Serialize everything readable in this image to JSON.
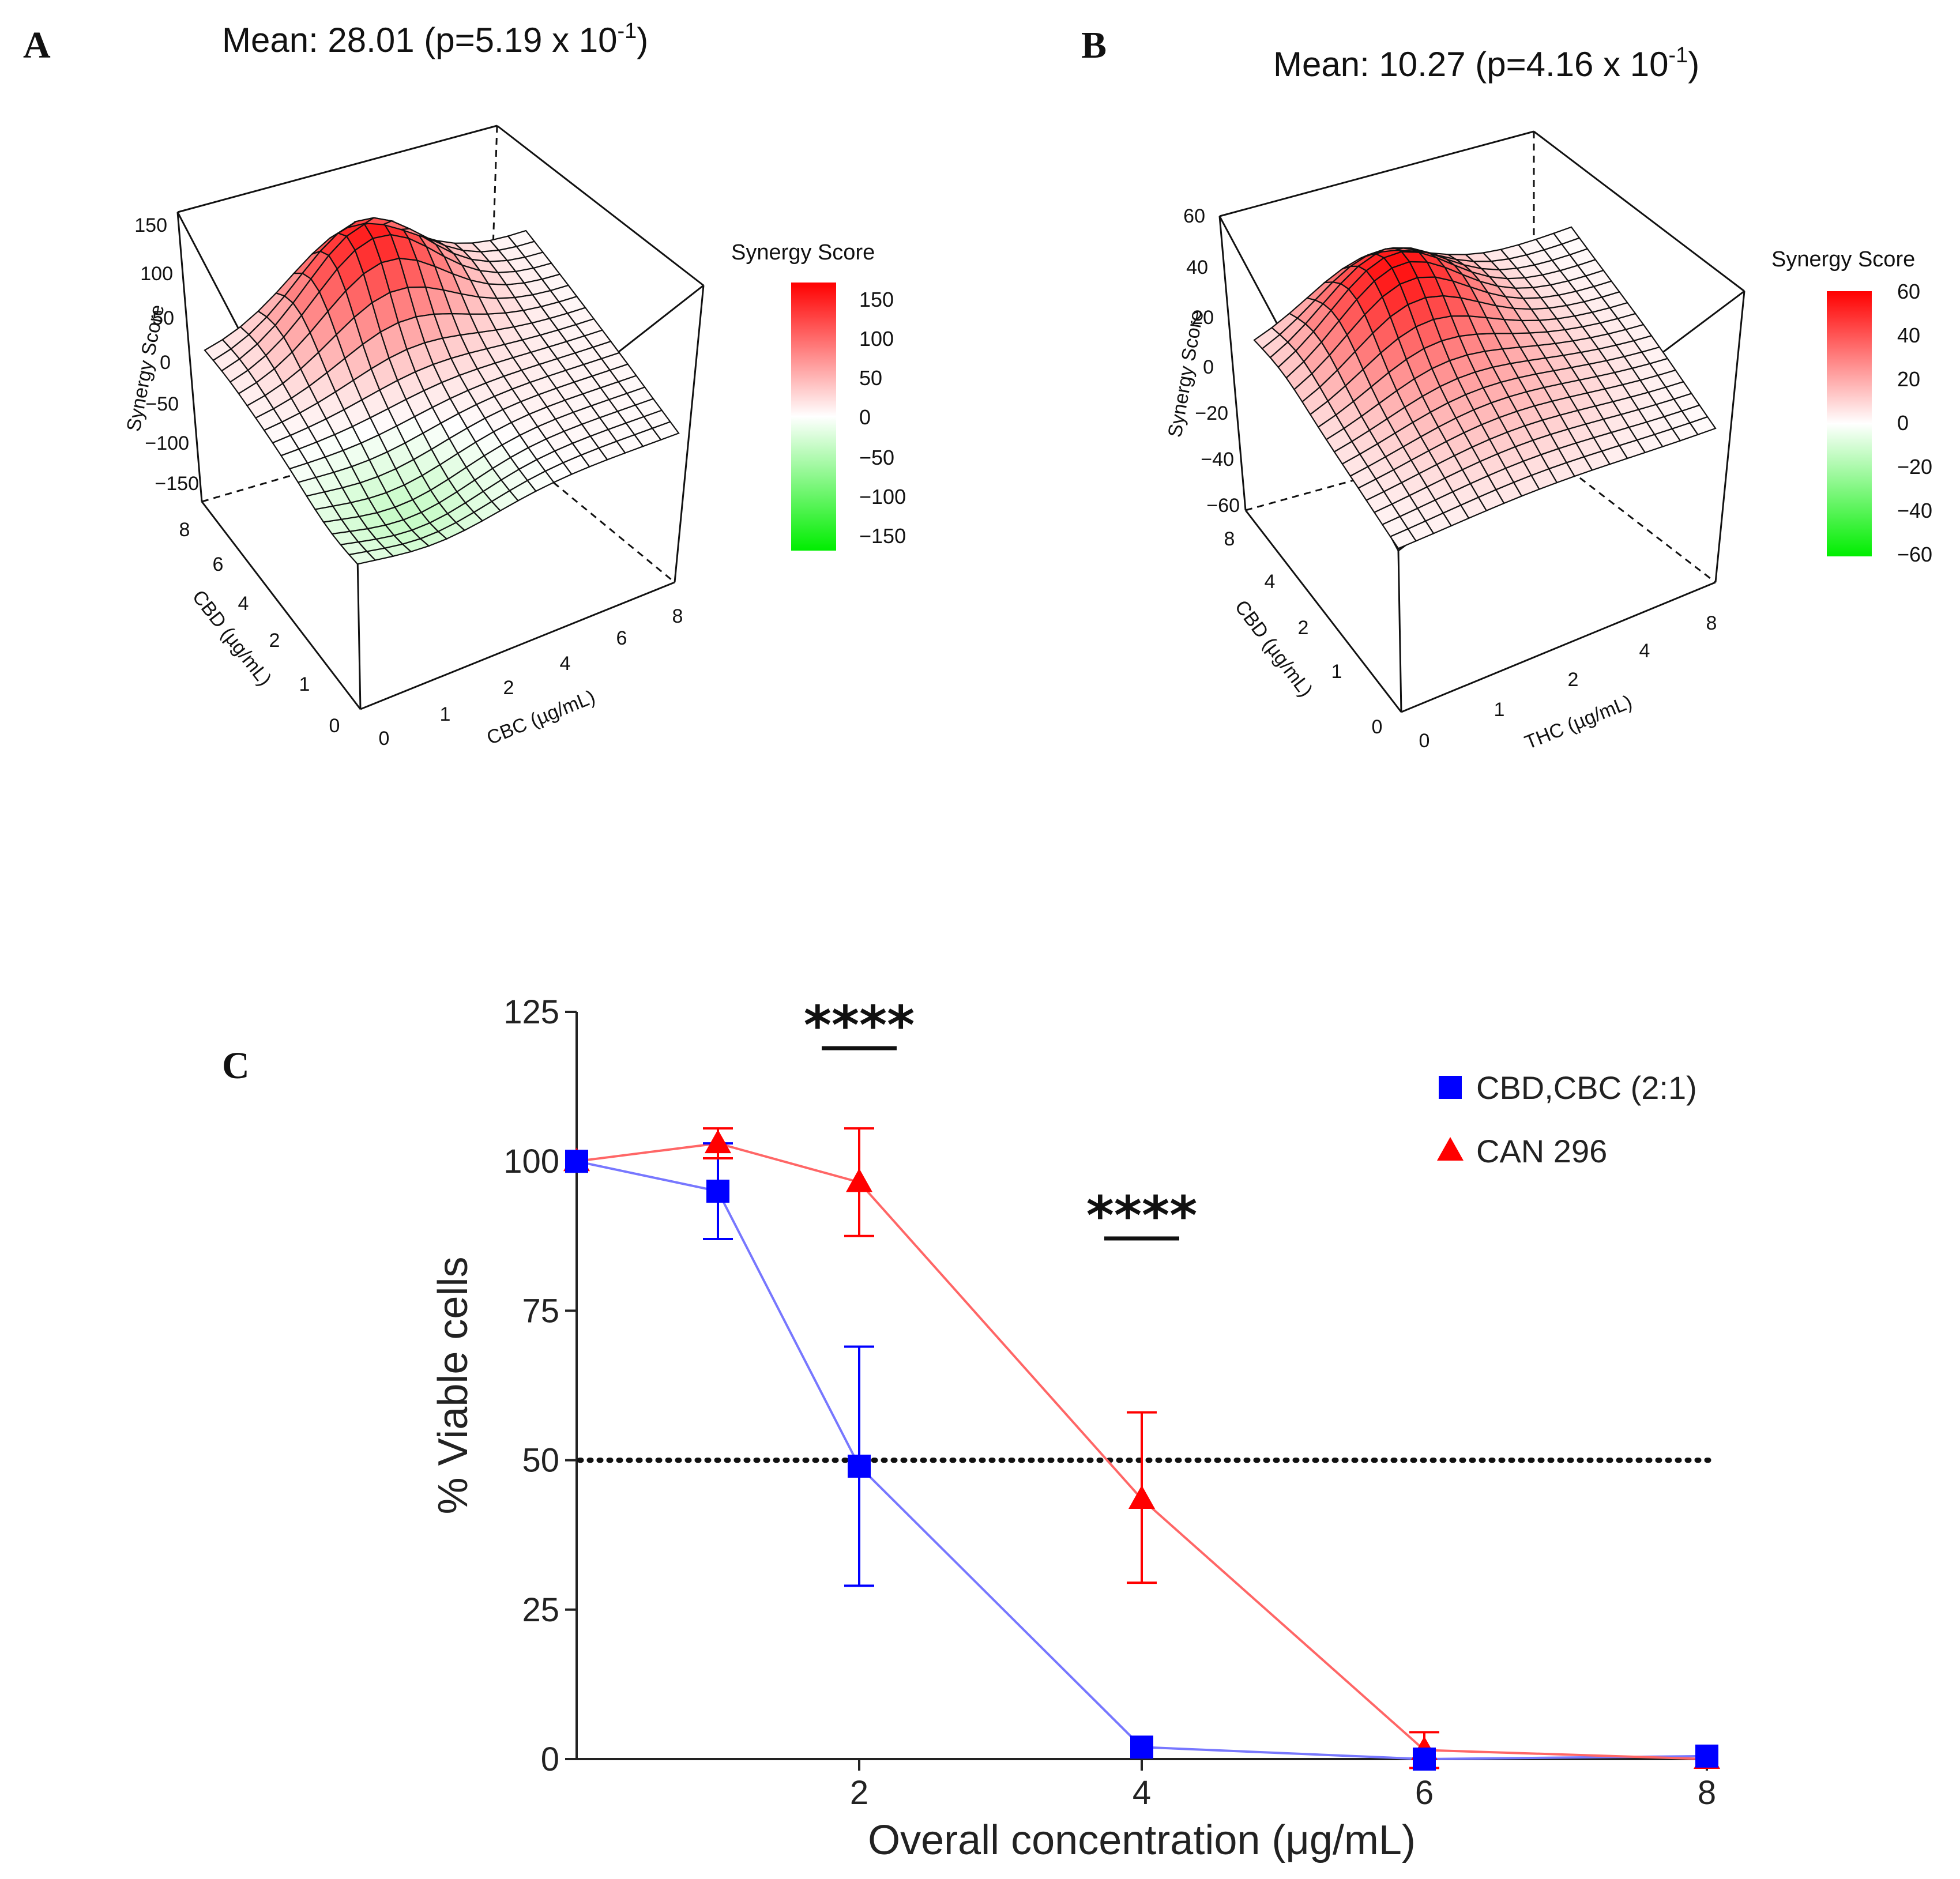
{
  "panels": {
    "A": {
      "letter": "A",
      "mean_label": "Mean: 28.01 (p=5.19 x 10",
      "mean_exp": "-1",
      "mean_close": ")",
      "z_label": "Synergy Score",
      "z_ticks": [
        "150",
        "100",
        "50",
        "0",
        "−50",
        "−100",
        "−150"
      ],
      "y_label": "CBD (µg/mL)",
      "y_ticks": [
        "0",
        "1",
        "2",
        "4",
        "6",
        "8"
      ],
      "x_label": "CBC (µg/mL)",
      "x_ticks": [
        "0",
        "1",
        "2",
        "4",
        "6",
        "8"
      ],
      "colorbar_title": "Synergy Score",
      "colorbar_ticks": [
        "150",
        "100",
        "50",
        "0",
        "−50",
        "−100",
        "−150"
      ]
    },
    "B": {
      "letter": "B",
      "mean_label": "Mean: 10.27 (p=4.16 x 10",
      "mean_exp": "-1",
      "mean_close": ")",
      "z_label": "Synergy Score",
      "z_ticks": [
        "60",
        "40",
        "20",
        "0",
        "−20",
        "−40",
        "−60"
      ],
      "y_label": "CBD (µg/mL)",
      "y_ticks": [
        "0",
        "1",
        "2",
        "4",
        "8"
      ],
      "x_label": "THC (µg/mL)",
      "x_ticks": [
        "0",
        "1",
        "2",
        "4",
        "8"
      ],
      "colorbar_title": "Synergy Score",
      "colorbar_ticks": [
        "60",
        "40",
        "20",
        "0",
        "−20",
        "−40",
        "−60"
      ]
    },
    "C": {
      "letter": "C",
      "significance": [
        "****",
        "****"
      ]
    }
  },
  "colors": {
    "synergy_high": "#ff0000",
    "synergy_mid": "#ffffff",
    "synergy_low": "#00ee00",
    "series_blue": "#0000ff",
    "series_red": "#ff0000",
    "line_blue": "#7777ff",
    "line_red": "#ff6666"
  },
  "chart_data": [
    {
      "type": "surface",
      "panel": "A",
      "title": "Mean: 28.01 (p=5.19 x 10^-1)",
      "xlabel": "CBC (µg/mL)",
      "ylabel": "CBD (µg/mL)",
      "zlabel": "Synergy Score",
      "zlim": [
        -150,
        150
      ],
      "peak": 130,
      "trough": -40
    },
    {
      "type": "surface",
      "panel": "B",
      "title": "Mean: 10.27 (p=4.16 x 10^-1)",
      "xlabel": "THC (µg/mL)",
      "ylabel": "CBD (µg/mL)",
      "zlabel": "Synergy Score",
      "zlim": [
        -60,
        60
      ],
      "peak": 50,
      "trough": 0
    },
    {
      "type": "line",
      "panel": "C",
      "xlabel": "Overall concentration (μg/mL)",
      "ylabel": "% Viable cells",
      "xlim": [
        0,
        8
      ],
      "ylim": [
        0,
        125
      ],
      "x_ticks": [
        2,
        4,
        6,
        8
      ],
      "y_ticks": [
        0,
        25,
        50,
        75,
        100,
        125
      ],
      "reference_line": 50,
      "series": [
        {
          "name": "CBD,CBC (2:1)",
          "marker": "square",
          "x": [
            0,
            1,
            2,
            4,
            6,
            8
          ],
          "values": [
            100,
            95,
            49,
            2,
            0,
            0.5
          ],
          "err_low": [
            0,
            8,
            20,
            0,
            0,
            0
          ],
          "err_high": [
            0,
            8,
            20,
            0,
            0,
            0
          ]
        },
        {
          "name": "CAN 296",
          "marker": "triangle",
          "x": [
            0,
            1,
            2,
            4,
            6,
            8
          ],
          "values": [
            100,
            103,
            96.5,
            43.5,
            1.5,
            0
          ],
          "err_low": [
            0,
            2.5,
            9,
            14,
            3,
            0
          ],
          "err_high": [
            0,
            2.5,
            9,
            14.5,
            3,
            0
          ]
        }
      ],
      "significance_markers": [
        {
          "label": "****",
          "x": 2
        },
        {
          "label": "****",
          "x": 4
        }
      ]
    }
  ]
}
